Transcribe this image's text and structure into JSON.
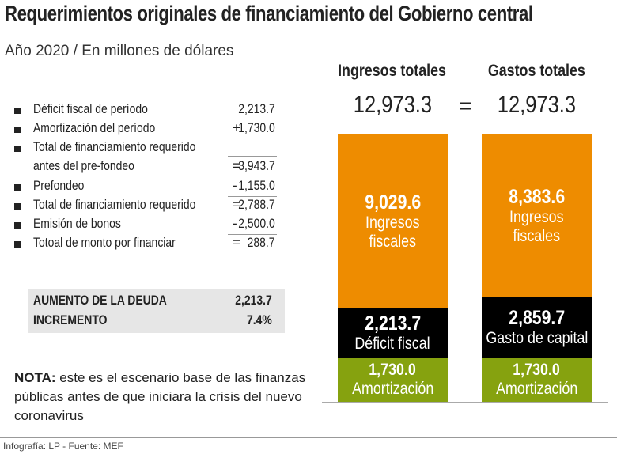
{
  "title": "Requerimientos originales de financiamiento del Gobierno central",
  "subtitle": "Año 2020 / En millones de dólares",
  "items": [
    {
      "label": "Déficit fiscal de período",
      "op": "",
      "value": "2,213.7"
    },
    {
      "label": "Amortización del período",
      "op": "+",
      "value": "1,730.0"
    },
    {
      "label": "Total de financiamiento requerido",
      "op": "",
      "value": ""
    },
    {
      "label": "antes del pre-fondeo",
      "op": "=",
      "value": "3,943.7"
    },
    {
      "label": "Prefondeo",
      "op": "-",
      "value": "1,155.0"
    },
    {
      "label": "Total de financiamiento requerido",
      "op": "=",
      "value": "2,788.7"
    },
    {
      "label": "Emisión de bonos",
      "op": "-",
      "value": "2,500.0"
    },
    {
      "label": "Totoal de monto por financiar",
      "op": "=",
      "value": "288.7"
    }
  ],
  "summary": {
    "row1_label": "AUMENTO DE LA DEUDA",
    "row1_value": "2,213.7",
    "row2_label": "INCREMENTO",
    "row2_value": "7.4%"
  },
  "nota": {
    "bold": "NOTA:",
    "text": " este es el escenario base de las finanzas públicas antes de que iniciara la crisis del nuevo coronavirus"
  },
  "credit": "Infografía: LP - Fuente: MEF",
  "chart_data": {
    "type": "bar",
    "stacked": true,
    "equals_sign": "=",
    "categories": [
      "Ingresos totales",
      "Gastos totales"
    ],
    "totals": [
      "12,973.3",
      "12,973.3"
    ],
    "bars": [
      {
        "segments": [
          {
            "value": "9,029.6",
            "label": "Ingresos fiscales",
            "color": "#ee8c00"
          },
          {
            "value": "2,213.7",
            "label": "Déficit fiscal",
            "color": "#000000"
          },
          {
            "value": "1,730.0",
            "label": "Amortización",
            "color": "#86a20f"
          }
        ]
      },
      {
        "segments": [
          {
            "value": "8,383.6",
            "label": "Ingresos fiscales",
            "color": "#ee8c00"
          },
          {
            "value": "2,859.7",
            "label": "Gasto de capital",
            "color": "#000000"
          },
          {
            "value": "1,730.0",
            "label": "Amortización",
            "color": "#86a20f"
          }
        ]
      }
    ]
  }
}
